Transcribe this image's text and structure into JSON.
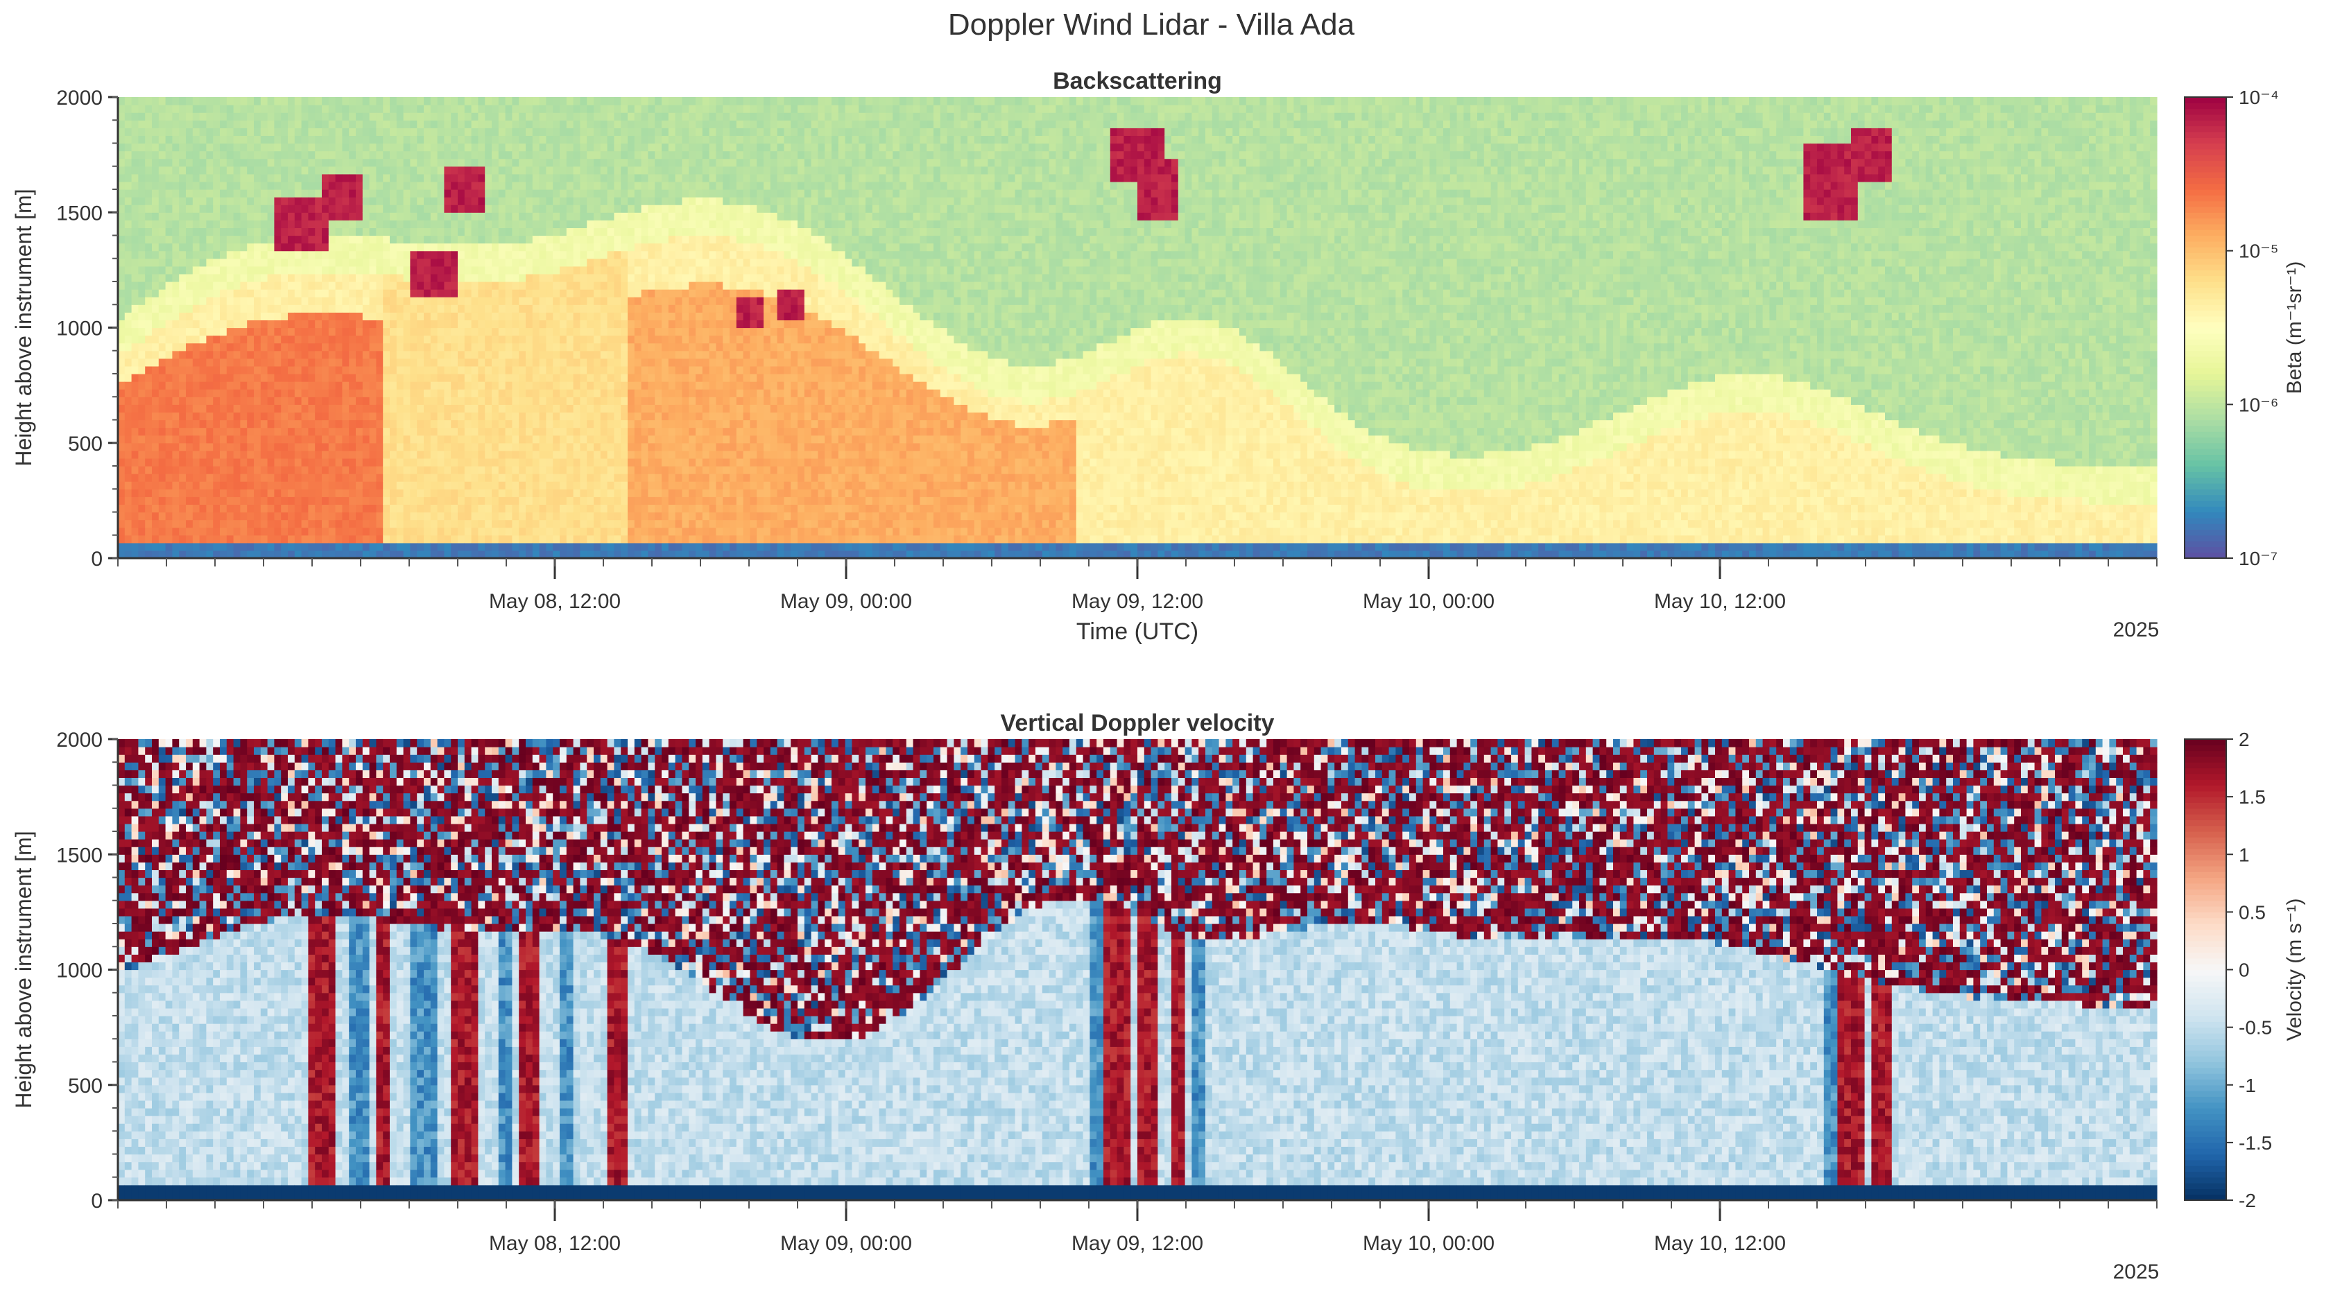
{
  "figure": {
    "title": "Doppler Wind Lidar - Villa Ada"
  },
  "chart_data": [
    {
      "type": "heatmap",
      "title": "Backscattering",
      "xlabel": "Time (UTC)",
      "ylabel": "Height above instrument [m]",
      "x_tick_labels": [
        "May 08, 12:00",
        "May 09, 00:00",
        "May 09, 12:00",
        "May 10, 00:00",
        "May 10, 12:00"
      ],
      "x_tick_times": [
        "2025-05-08T12:00",
        "2025-05-09T00:00",
        "2025-05-09T12:00",
        "2025-05-10T00:00",
        "2025-05-10T12:00"
      ],
      "xlim": [
        "2025-05-07T18:00",
        "2025-05-11T06:00"
      ],
      "year_label": "2025",
      "y_ticks": [
        0,
        500,
        1000,
        1500,
        2000
      ],
      "ylim": [
        0,
        2000
      ],
      "colorbar": {
        "label": "Beta (m⁻¹sr⁻¹)",
        "scale": "log",
        "range": [
          1e-07,
          0.0001
        ],
        "tick_labels": [
          "10⁻⁴",
          "10⁻⁵",
          "10⁻⁶",
          "10⁻⁷"
        ],
        "tick_values": [
          0.0001,
          1e-05,
          1e-06,
          1e-07
        ],
        "colormap": [
          "#5e4fa2",
          "#3288bd",
          "#66c2a5",
          "#abdda4",
          "#e6f598",
          "#ffffbf",
          "#fee08b",
          "#fdae61",
          "#f46d43",
          "#d53e4f",
          "#9e0142"
        ]
      }
    },
    {
      "type": "heatmap",
      "title": "Vertical Doppler velocity",
      "xlabel": "",
      "ylabel": "Height above instrument [m]",
      "x_tick_labels": [
        "May 08, 12:00",
        "May 09, 00:00",
        "May 09, 12:00",
        "May 10, 00:00",
        "May 10, 12:00"
      ],
      "x_tick_times": [
        "2025-05-08T12:00",
        "2025-05-09T00:00",
        "2025-05-09T12:00",
        "2025-05-10T00:00",
        "2025-05-10T12:00"
      ],
      "xlim": [
        "2025-05-07T18:00",
        "2025-05-11T06:00"
      ],
      "year_label": "2025",
      "y_ticks": [
        0,
        500,
        1000,
        1500,
        2000
      ],
      "ylim": [
        0,
        2000
      ],
      "colorbar": {
        "label": "Velocity (m s⁻¹)",
        "scale": "linear",
        "range": [
          -2,
          2
        ],
        "tick_labels": [
          "2",
          "1.5",
          "1",
          "0.5",
          "0",
          "-0.5",
          "-1",
          "-1.5",
          "-2"
        ],
        "tick_values": [
          2,
          1.5,
          1,
          0.5,
          0,
          -0.5,
          -1,
          -1.5,
          -2
        ],
        "colormap": [
          "#053061",
          "#2166ac",
          "#4393c3",
          "#92c5de",
          "#d1e5f0",
          "#f7f7f7",
          "#fddbc7",
          "#f4a582",
          "#d6604d",
          "#b2182b",
          "#67001f"
        ]
      }
    }
  ]
}
